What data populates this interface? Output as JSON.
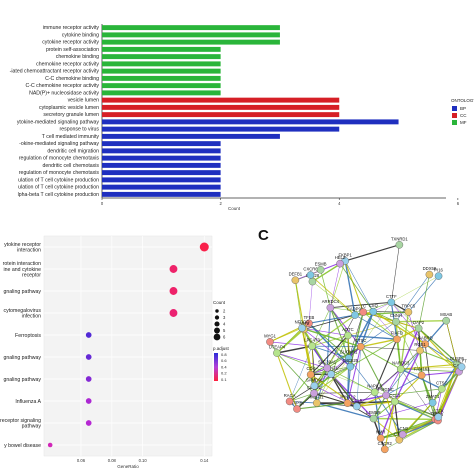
{
  "chart_data": [
    {
      "type": "bar",
      "orientation": "horizontal",
      "categories": [
        "immune receptor activity",
        "cytokine binding",
        "cytokine receptor activity",
        "protein self-association",
        "chemokine binding",
        "chemokine receptor activity",
        "-iated chemoattractant receptor activity",
        "C-C chemokine binding",
        "C-C chemokine receptor activity",
        "NAD(P)+ nucleosidase activity",
        "vesicle lumen",
        "cytoplasmic vesicle lumen",
        "secretory granule lumen",
        "ytokine-mediated signaling pathway",
        "response to virus",
        "T cell mediated immunity",
        "-okine-mediated signaling pathway",
        "dendritic cell migration",
        "regulation of monocyte chemotaxis",
        "dendritic cell chemotaxis",
        "regulation of monocyte chemotaxis",
        "ulation of T cell cytokine production",
        "ulation of T cell cytokine production",
        "lpha-beta T cell cytokine production"
      ],
      "values": [
        3,
        3,
        3,
        2,
        2,
        2,
        2,
        2,
        2,
        2,
        4,
        4,
        4,
        5,
        4,
        3,
        2,
        2,
        2,
        2,
        2,
        2,
        2,
        2
      ],
      "groups": [
        "MF",
        "MF",
        "MF",
        "MF",
        "MF",
        "MF",
        "MF",
        "MF",
        "MF",
        "MF",
        "CC",
        "CC",
        "CC",
        "BP",
        "BP",
        "BP",
        "BP",
        "BP",
        "BP",
        "BP",
        "BP",
        "BP",
        "BP",
        "BP"
      ],
      "xlabel": "Count",
      "xticks": [
        "0",
        "2",
        "4",
        "6"
      ],
      "xlim": [
        0,
        5.8
      ],
      "legend": {
        "title": "ONTOLOGY",
        "entries": [
          "BP",
          "CC",
          "MF"
        ],
        "placement": "right"
      },
      "colors": {
        "BP": "#1f2fbf",
        "CC": "#d61f26",
        "MF": "#2ab53a"
      }
    },
    {
      "type": "scatter",
      "categories": [
        "ytokine receptor interaction",
        "rotein interaction ine and cytokine receptor",
        "gnaling pathway",
        "cytomegalovirus infection",
        "Ferroptosis",
        "gnaling pathway",
        "gnaling pathway",
        "Influenza A",
        "receptor signaling pathway",
        "y bowel disease"
      ],
      "x": [
        0.14,
        0.12,
        0.12,
        0.12,
        0.065,
        0.065,
        0.065,
        0.065,
        0.065,
        0.04
      ],
      "count": [
        6,
        5,
        5,
        5,
        3,
        3,
        3,
        3,
        3,
        2
      ],
      "padj": [
        0.002,
        0.006,
        0.006,
        0.007,
        0.031,
        0.029,
        0.026,
        0.022,
        0.021,
        0.016
      ],
      "xlabel": "GeneRatio",
      "xticks": [
        "0.06",
        "0.08",
        "0.10",
        "0.14"
      ],
      "xlim": [
        0.036,
        0.145
      ],
      "size_legend": {
        "title": "Count",
        "entries": [
          "2",
          "3",
          "4",
          "5",
          "6"
        ]
      },
      "color_legend": {
        "title": "p.adjust",
        "ticks": [
          "0.8",
          "0.6",
          "0.4",
          "0.2",
          "0.1"
        ]
      }
    }
  ],
  "panel_c": {
    "label": "C",
    "nodes": [
      "PI16",
      "FAM163",
      "CNNH",
      "MEF31",
      "ARRDC4",
      "TIPT",
      "ARNTL",
      "LPCAT3",
      "ZMAT1",
      "ARNTL2",
      "DUSP6",
      "CTR1",
      "SLC39A1",
      "TFEB",
      "FKBP1",
      "NARDC3",
      "SUCNR1",
      "GABRD",
      "SOX28",
      "TRPC5",
      "CCNT2",
      "MAP3K",
      "SAMD9L",
      "NAPILS",
      "CADP90",
      "NMR",
      "TXNRD1",
      "DDX58",
      "HELZ",
      "MYG1",
      "CCL5",
      "CCL3",
      "CXCR6",
      "CXCR2",
      "DAP2",
      "ASF2",
      "CAD4",
      "RACA",
      "NFDDO",
      "CTSC",
      "CTTF",
      "FIAFD",
      "ESMB",
      "DEFB1",
      "LCN2",
      "SC16",
      "HLYT",
      "UTEAP4",
      "CSQ",
      "CTSC",
      "LEMBR",
      "RGS1",
      "PMGNC",
      "TC",
      "CTFK",
      "ADTC",
      "C4C525",
      "CD4",
      "MSAB"
    ]
  }
}
